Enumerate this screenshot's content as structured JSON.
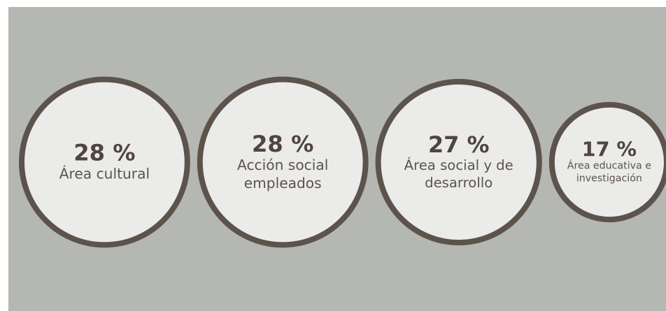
{
  "chart_data": {
    "type": "bubble",
    "categories": [
      "Área cultural",
      "Acción social empleados",
      "Área social y de desarrollo",
      "Área educativa e investigación"
    ],
    "values": [
      28,
      28,
      27,
      17
    ],
    "value_labels": [
      "28 %",
      "28 %",
      "27 %",
      "17 %"
    ],
    "color": "#ebebea",
    "border_color": "#5c534c",
    "background": "#b5b7b2"
  }
}
